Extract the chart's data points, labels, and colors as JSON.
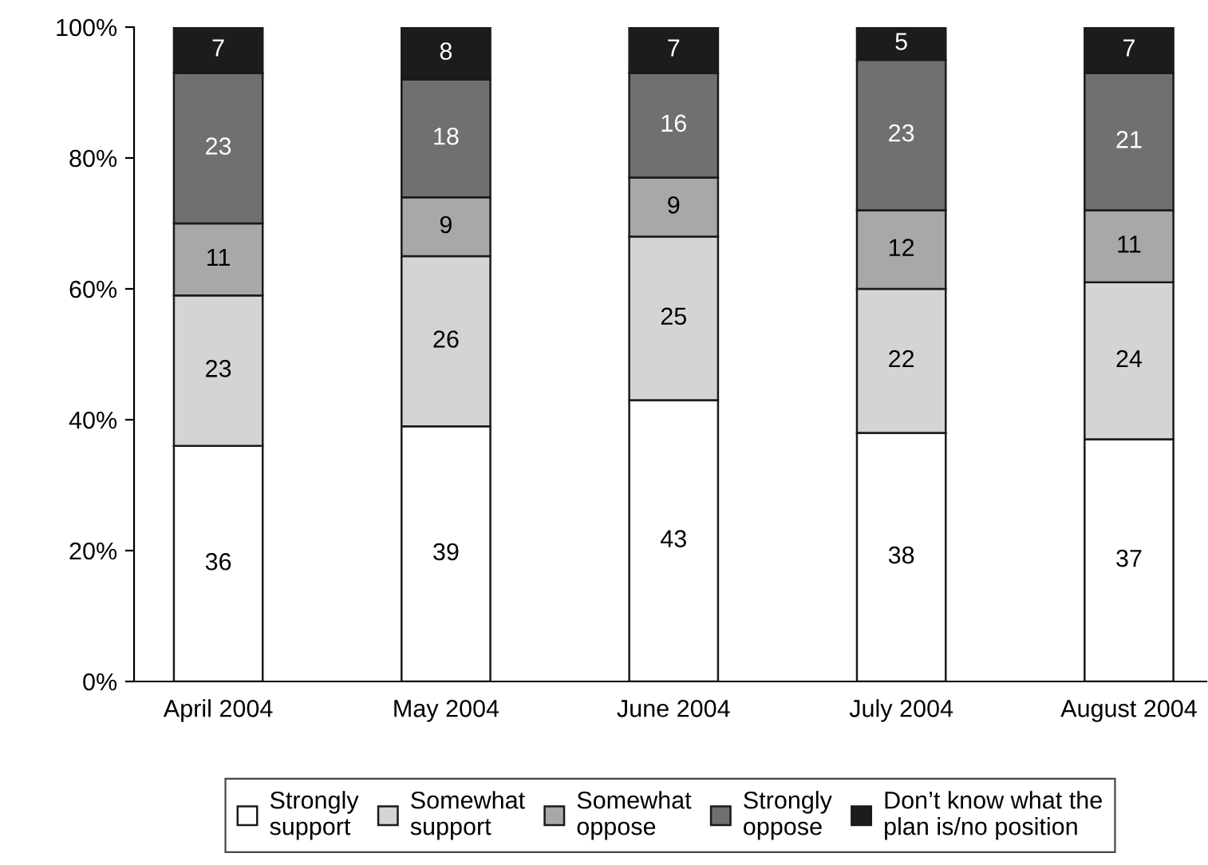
{
  "chart_data": {
    "type": "bar",
    "stacked": true,
    "data_labels": true,
    "legend": "bottom",
    "grid": false,
    "categories": [
      "April 2004",
      "May 2004",
      "June 2004",
      "July 2004",
      "August 2004"
    ],
    "ylim": [
      0,
      100
    ],
    "yticks": [
      {
        "value": 0,
        "label": "0%"
      },
      {
        "value": 20,
        "label": "20%"
      },
      {
        "value": 40,
        "label": "40%"
      },
      {
        "value": 60,
        "label": "60%"
      },
      {
        "value": 80,
        "label": "80%"
      },
      {
        "value": 100,
        "label": "100%"
      }
    ],
    "series": [
      {
        "name": "Strongly\nsupport",
        "color": "#ffffff",
        "values": [
          36,
          39,
          43,
          38,
          37
        ]
      },
      {
        "name": "Somewhat\nsupport",
        "color": "#d4d4d4",
        "values": [
          23,
          26,
          25,
          22,
          24
        ]
      },
      {
        "name": "Somewhat\noppose",
        "color": "#a8a8a8",
        "values": [
          11,
          9,
          9,
          12,
          11
        ]
      },
      {
        "name": "Strongly\noppose",
        "color": "#707070",
        "values": [
          23,
          18,
          16,
          23,
          21
        ]
      },
      {
        "name": "Don’t know what the\nplan is/no position",
        "color": "#1c1c1c",
        "values": [
          7,
          8,
          7,
          5,
          7
        ]
      }
    ]
  }
}
